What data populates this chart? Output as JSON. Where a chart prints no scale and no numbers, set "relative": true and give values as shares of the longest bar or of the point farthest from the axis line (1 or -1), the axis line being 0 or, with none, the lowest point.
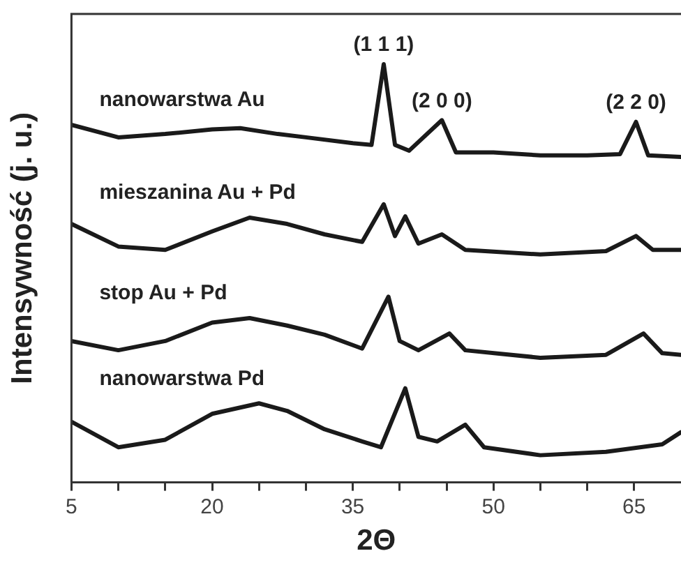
{
  "chart_data": {
    "type": "line",
    "xlabel": "2Θ",
    "ylabel": "Intensywność (j. u.)",
    "relative": true,
    "xlim": [
      5,
      70
    ],
    "xticks": [
      5,
      {
        "value": 10,
        "label": null
      },
      {
        "value": 15,
        "label": null
      },
      20,
      {
        "value": 25,
        "label": null
      },
      {
        "value": 30,
        "label": null
      },
      35,
      {
        "value": 40,
        "label": null
      },
      {
        "value": 45,
        "label": null
      },
      50,
      {
        "value": 55,
        "label": null
      },
      {
        "value": 60,
        "label": null
      },
      65
    ],
    "marker": "none",
    "legend": false,
    "grid": false,
    "tick_labels": "x",
    "series": [
      {
        "name": "nanowarstwa Au",
        "color": "#1a1a1a",
        "x": [
          5,
          10,
          15,
          20,
          23,
          27,
          30,
          35,
          37,
          38.3,
          39.5,
          41,
          44.5,
          46,
          50,
          55,
          60,
          63.5,
          65.2,
          66.5,
          70
        ],
        "values": [
          0.855,
          0.825,
          0.833,
          0.844,
          0.847,
          0.833,
          0.825,
          0.811,
          0.807,
          1,
          0.807,
          0.793,
          0.866,
          0.789,
          0.789,
          0.782,
          0.782,
          0.785,
          0.862,
          0.782,
          0.778
        ]
      },
      {
        "name": "mieszanina Au + Pd",
        "color": "#1a1a1a",
        "x": [
          5,
          10,
          15,
          20,
          24,
          28,
          32,
          36,
          38.3,
          39.5,
          40.6,
          42,
          44.5,
          47,
          55,
          62,
          65.2,
          67,
          70
        ],
        "values": [
          0.618,
          0.564,
          0.556,
          0.6,
          0.633,
          0.618,
          0.593,
          0.575,
          0.665,
          0.589,
          0.636,
          0.571,
          0.593,
          0.556,
          0.545,
          0.553,
          0.589,
          0.556,
          0.556
        ]
      },
      {
        "name": "stop Au + Pd",
        "color": "#1a1a1a",
        "x": [
          5,
          10,
          15,
          20,
          24,
          28,
          32,
          36,
          38.8,
          40,
          42,
          45.3,
          47,
          55,
          62,
          66,
          68,
          70
        ],
        "values": [
          0.338,
          0.316,
          0.338,
          0.382,
          0.393,
          0.375,
          0.353,
          0.32,
          0.444,
          0.338,
          0.316,
          0.356,
          0.316,
          0.298,
          0.305,
          0.356,
          0.309,
          0.305
        ]
      },
      {
        "name": "nanowarstwa Pd",
        "color": "#1a1a1a",
        "x": [
          5,
          10,
          15,
          20,
          25,
          28,
          32,
          36,
          38,
          40.6,
          42,
          44,
          47,
          49,
          55,
          62,
          68,
          70
        ],
        "values": [
          0.145,
          0.084,
          0.102,
          0.164,
          0.189,
          0.171,
          0.127,
          0.098,
          0.084,
          0.225,
          0.109,
          0.098,
          0.138,
          0.084,
          0.065,
          0.073,
          0.091,
          0.12
        ]
      }
    ],
    "annotations": [
      {
        "text": "(1 1 1)",
        "x": 38.3,
        "y": 1
      },
      {
        "text": "(2 0 0)",
        "x": 44.5,
        "y": 0.866
      },
      {
        "text": "(2 2 0)",
        "x": 65.2,
        "y": 0.862
      }
    ]
  }
}
